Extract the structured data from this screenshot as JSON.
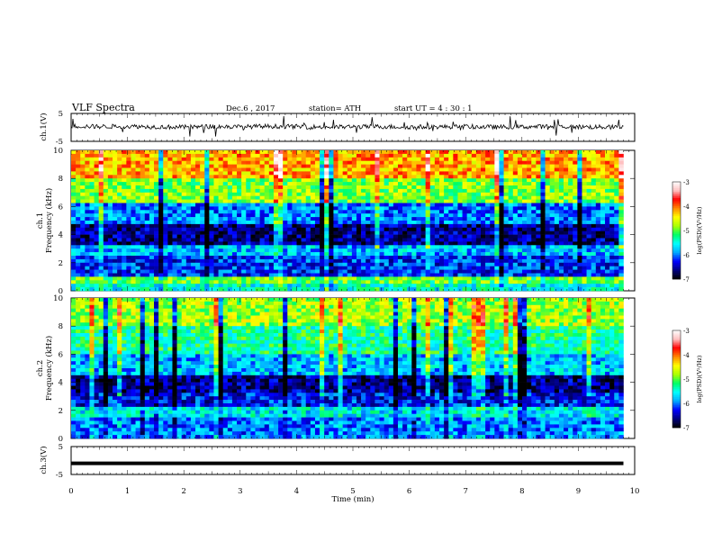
{
  "header": {
    "title": "VLF  Spectra",
    "date": "Dec.6  , 2017",
    "station": "station= ATH",
    "start": "start  UT  =   4  : 30 : 1"
  },
  "colors": {
    "background": "#ffffff",
    "axis": "#000000",
    "colormap": [
      "#000000",
      "#000080",
      "#0000ff",
      "#00aaff",
      "#00ffff",
      "#00ff66",
      "#aaff00",
      "#ffff00",
      "#ff8800",
      "#ff0000",
      "#ffc0c0",
      "#ffffff"
    ]
  },
  "chart_data": [
    {
      "id": "ch1-voltage",
      "type": "line",
      "ylabel": "ch.1(V)",
      "ylim": [
        -5,
        5
      ],
      "yticks": [
        "5",
        "-5"
      ],
      "xlim": [
        0,
        10
      ],
      "x": [
        0,
        0.5,
        1,
        1.5,
        2,
        2.5,
        3,
        3.5,
        4,
        4.5,
        5,
        5.5,
        6,
        6.5,
        7,
        7.5,
        8,
        8.5,
        9,
        9.5,
        9.8
      ],
      "y": [
        0.5,
        0.3,
        0.4,
        0.2,
        0.1,
        0.3,
        0.2,
        0.4,
        0.3,
        0.1,
        0.2,
        0.3,
        0.1,
        0.2,
        0.3,
        0.1,
        0.2,
        0.3,
        0.2,
        0.1,
        0.1
      ],
      "grid": false
    },
    {
      "id": "ch1-spectrogram",
      "type": "heatmap",
      "ylabel": "ch.1\nFrequency  (kHz)",
      "yticks": [
        "10",
        "8",
        "6",
        "4",
        "2",
        "0"
      ],
      "ylim": [
        0,
        10
      ],
      "xlim": [
        0,
        10
      ],
      "data_end_min": 9.8,
      "frequency_bands_khz": [
        [
          0,
          0.4
        ],
        [
          0.4,
          1
        ],
        [
          1,
          2.5
        ],
        [
          2.5,
          3.3
        ],
        [
          3.3,
          4.8
        ],
        [
          4.8,
          6.2
        ],
        [
          6.2,
          8
        ],
        [
          8,
          10
        ]
      ],
      "log_psd_by_band": [
        -5.5,
        -5.0,
        -6.2,
        -5.8,
        -6.6,
        -6.0,
        -4.9,
        -4.2
      ],
      "colorbar": {
        "label": "log(PSD)(V²/Hz)",
        "range": [
          -7,
          -3
        ],
        "ticks": [
          "-3",
          "-4",
          "-5",
          "-6",
          "-7"
        ]
      }
    },
    {
      "id": "ch2-spectrogram",
      "type": "heatmap",
      "ylabel": "ch.2\nFrequency  (kHz)",
      "yticks": [
        "10",
        "8",
        "6",
        "4",
        "2",
        "0"
      ],
      "ylim": [
        0,
        10
      ],
      "xlim": [
        0,
        10
      ],
      "data_end_min": 9.8,
      "frequency_bands_khz": [
        [
          0,
          1.5
        ],
        [
          1.5,
          2.2
        ],
        [
          2.2,
          3.2
        ],
        [
          3.2,
          4.5
        ],
        [
          4.5,
          6
        ],
        [
          6,
          8
        ],
        [
          8,
          10
        ]
      ],
      "log_psd_by_band": [
        -6.0,
        -5.6,
        -6.3,
        -6.6,
        -5.8,
        -5.3,
        -4.8
      ],
      "colorbar": {
        "label": "log(PSD)(V²/Hz)",
        "range": [
          -7,
          -3
        ],
        "ticks": [
          "-3",
          "-4",
          "-5",
          "-6",
          "-7"
        ]
      }
    },
    {
      "id": "ch3-voltage",
      "type": "line",
      "ylabel": "ch.3(V)",
      "ylim": [
        -5,
        5
      ],
      "yticks": [
        "5",
        "-5"
      ],
      "xlim": [
        0,
        10
      ],
      "x": [
        0,
        2,
        4,
        6,
        8,
        9.8
      ],
      "y": [
        -1,
        -1,
        -1,
        -1,
        -1,
        -1
      ],
      "grid": false
    }
  ],
  "xaxis": {
    "label": "Time  (min)",
    "ticks": [
      "0",
      "1",
      "2",
      "3",
      "4",
      "5",
      "6",
      "7",
      "8",
      "9",
      "10"
    ]
  }
}
